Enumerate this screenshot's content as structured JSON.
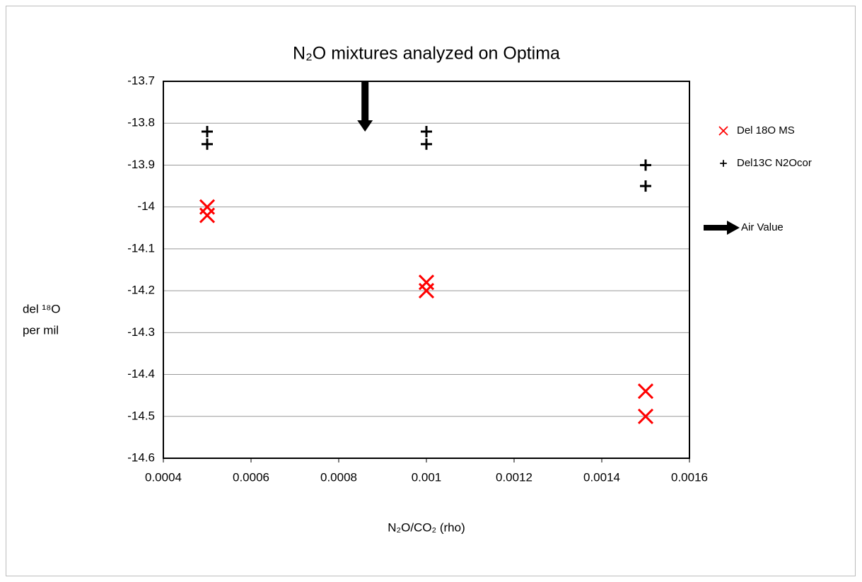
{
  "chart_data": {
    "type": "scatter",
    "title": "N₂O mixtures analyzed on Optima",
    "x_label": "N₂O/CO₂  (rho)",
    "y_label": [
      "del ¹⁸O",
      "per mil"
    ],
    "xlim": [
      0.0004,
      0.0016
    ],
    "xticks": [
      0.0004,
      0.0006,
      0.0008,
      0.001,
      0.0012,
      0.0014,
      0.0016
    ],
    "ylim": [
      -14.6,
      -13.7
    ],
    "yticks": [
      -14.6,
      -14.5,
      -14.4,
      -14.3,
      -14.2,
      -14.1,
      -14,
      -13.9,
      -13.8,
      -13.7
    ],
    "grid": true,
    "legend": "right",
    "series": [
      {
        "name": "Del 18O MS",
        "color": "#ff0000",
        "marker": "x",
        "x": [
          0.0005,
          0.0005,
          0.001,
          0.001,
          0.0015,
          0.0015
        ],
        "values": [
          -14.0,
          -14.02,
          -14.18,
          -14.2,
          -14.44,
          -14.5
        ]
      },
      {
        "name": "Del13C N2Ocor",
        "color": "#000000",
        "marker": "plus",
        "x": [
          0.0005,
          0.0005,
          0.001,
          0.001,
          0.0015,
          0.0015
        ],
        "values": [
          -13.82,
          -13.85,
          -13.82,
          -13.85,
          -13.9,
          -13.95
        ]
      },
      {
        "name": "Air Value",
        "color": "#000000",
        "marker": "arrow",
        "x": [
          0.00086
        ],
        "values": [
          -13.82
        ]
      }
    ]
  }
}
